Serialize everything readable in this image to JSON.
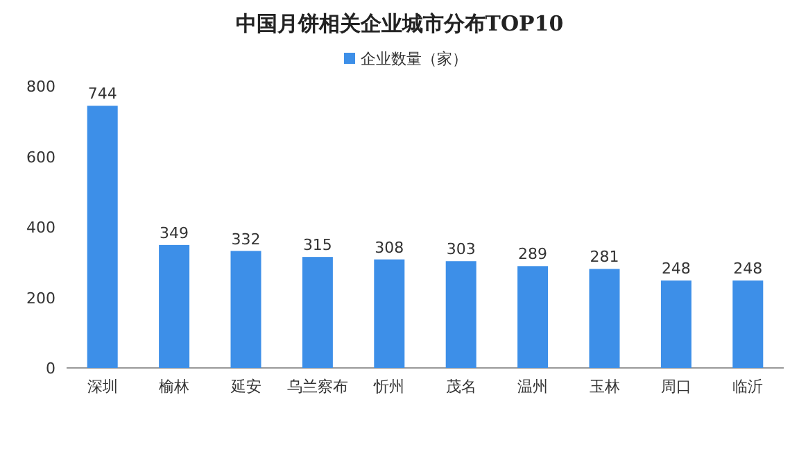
{
  "chart_data": {
    "type": "bar",
    "title": "中国月饼相关企业城市分布TOP10",
    "categories": [
      "深圳",
      "榆林",
      "延安",
      "乌兰察布",
      "忻州",
      "茂名",
      "温州",
      "玉林",
      "周口",
      "临沂"
    ],
    "series": [
      {
        "name": "企业数量（家）",
        "color": "#3d8fe8",
        "values": [
          744,
          349,
          332,
          315,
          308,
          303,
          289,
          281,
          248,
          248
        ]
      }
    ],
    "ylim": [
      0,
      800
    ],
    "yticks": [
      0,
      200,
      400,
      600,
      800
    ],
    "data_labels": true,
    "legend": "top",
    "grid": false
  }
}
